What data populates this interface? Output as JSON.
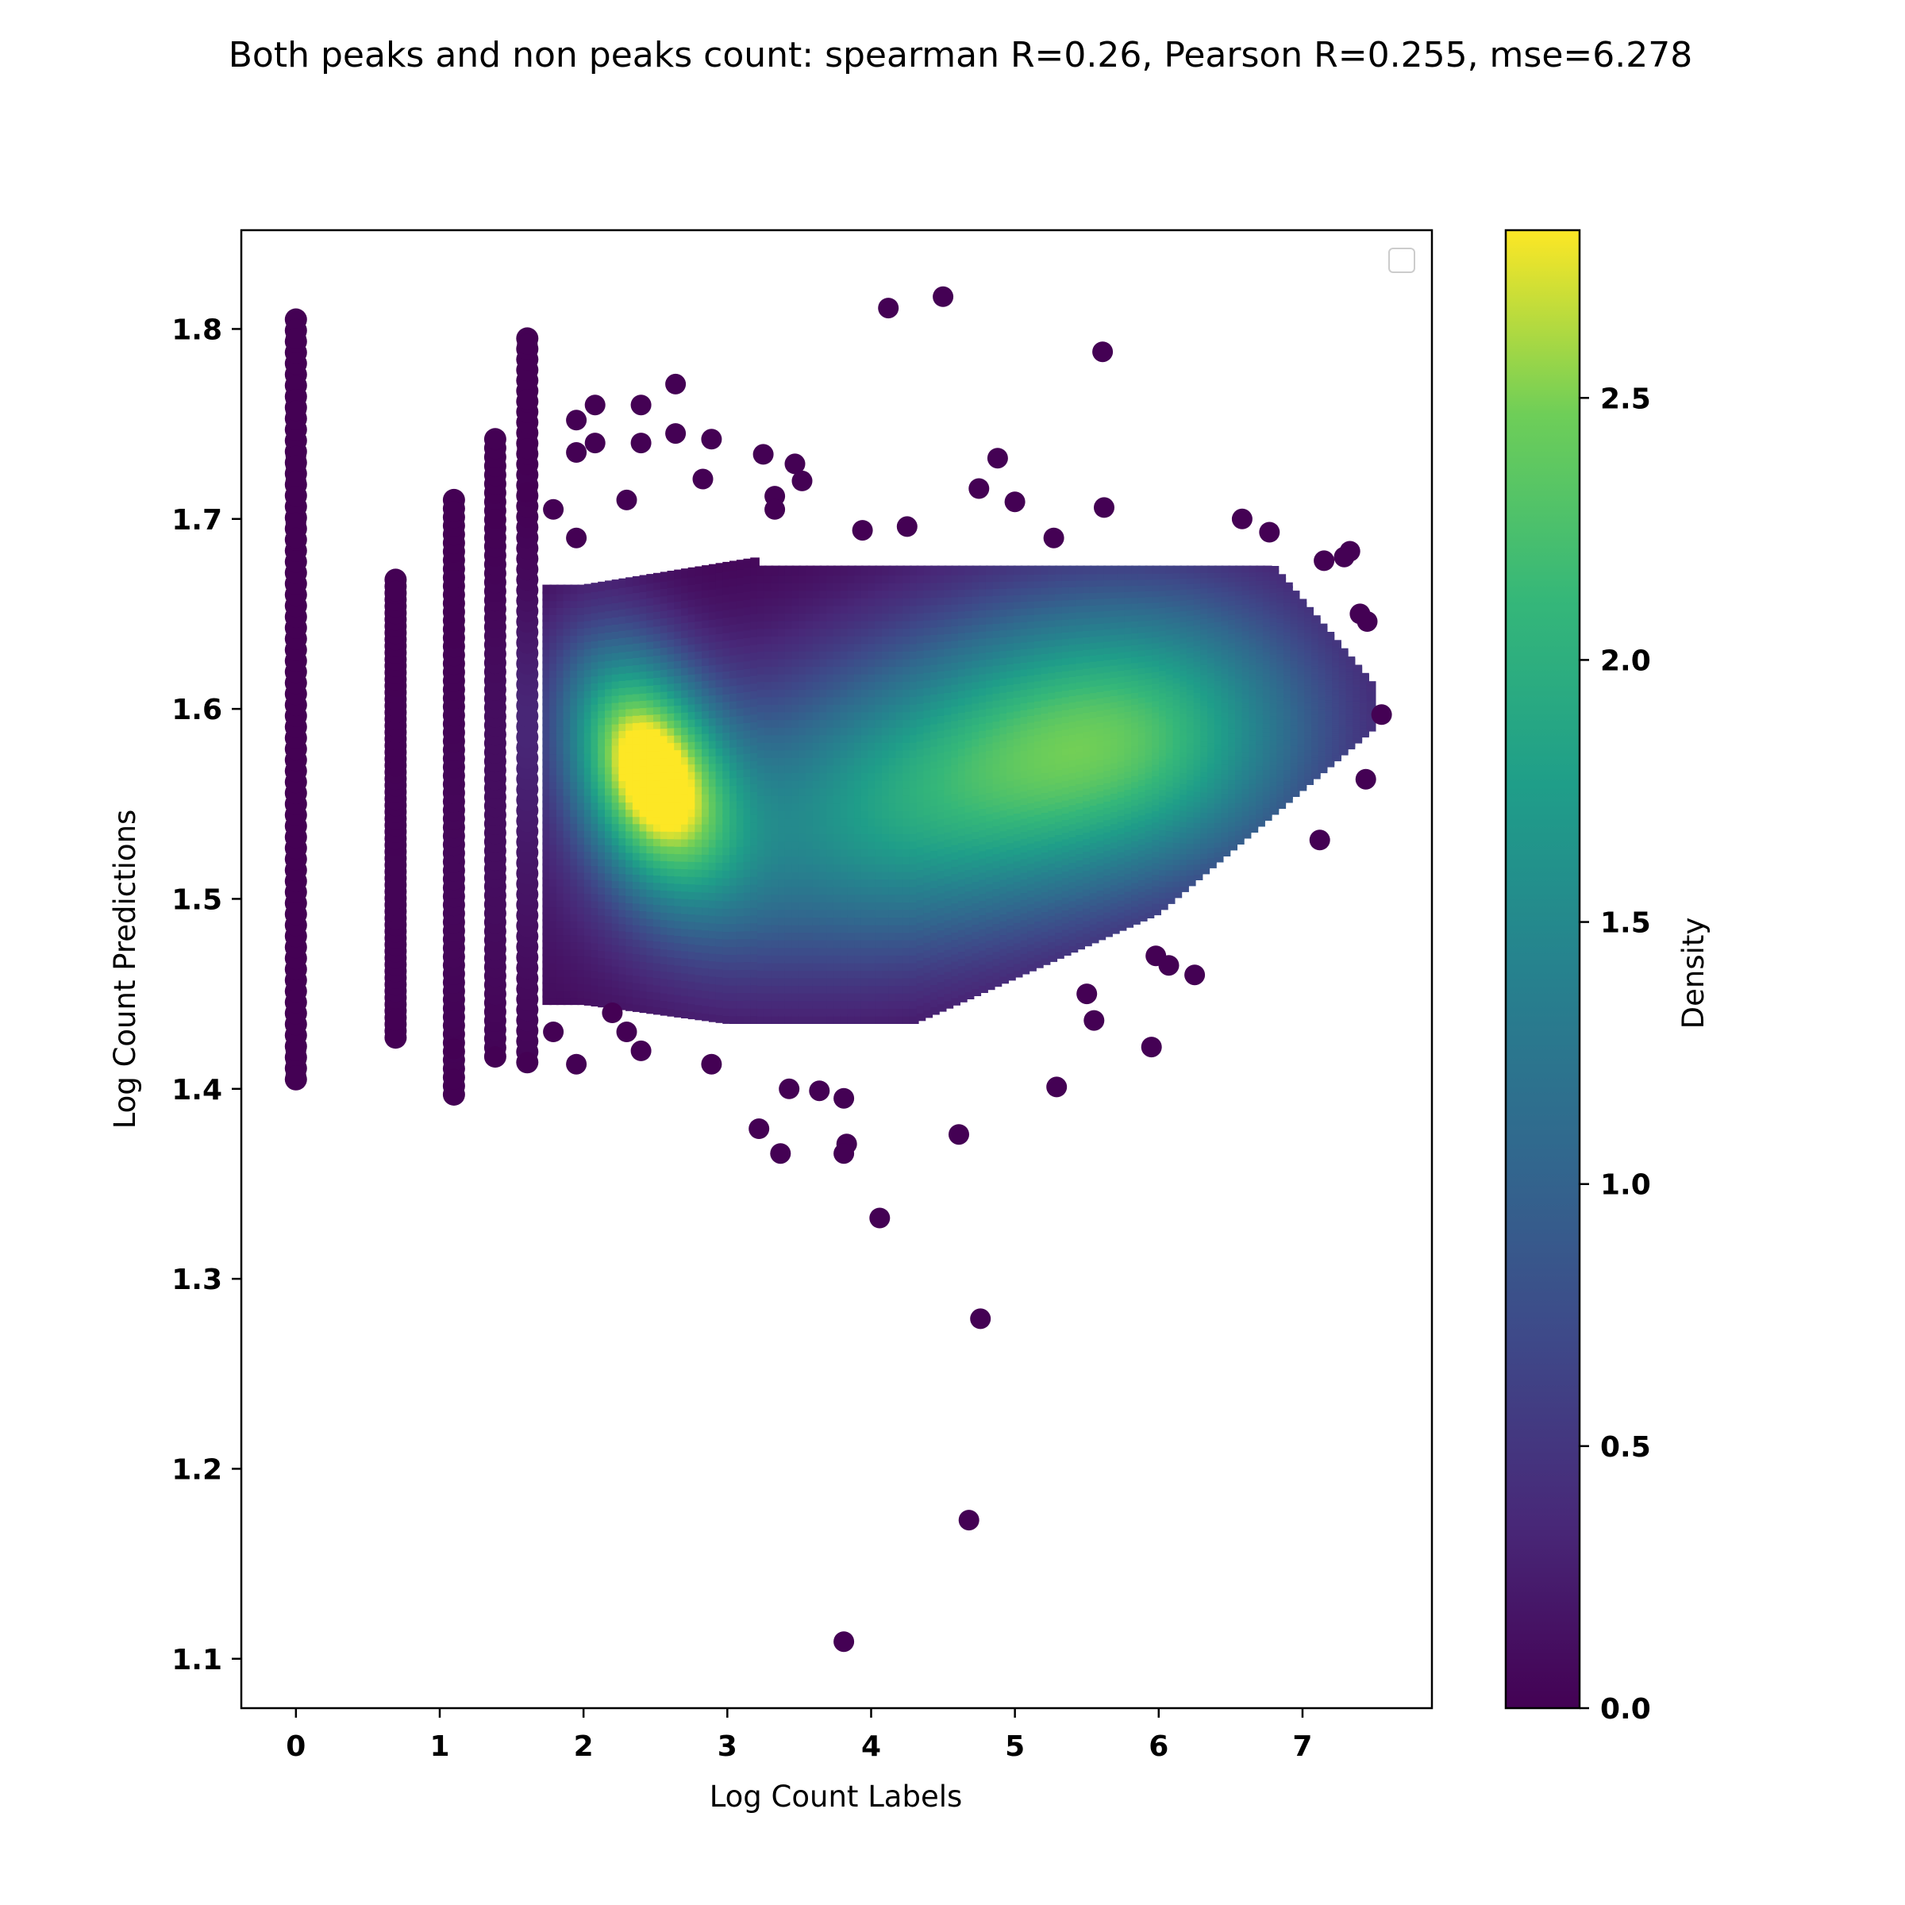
{
  "chart_data": {
    "type": "scatter",
    "title": "Both peaks and non peaks count: spearman R=0.26, Pearson R=0.255, mse=6.278",
    "xlabel": "Log Count Labels",
    "ylabel": "Log Count Predictions",
    "xlim": [
      -0.38,
      7.9
    ],
    "ylim": [
      1.074,
      1.852
    ],
    "x_ticks": [
      "0",
      "1",
      "2",
      "3",
      "4",
      "5",
      "6",
      "7"
    ],
    "y_ticks": [
      "1.1",
      "1.2",
      "1.3",
      "1.4",
      "1.5",
      "1.6",
      "1.7",
      "1.8"
    ],
    "grid": false,
    "legend": {
      "placement": "upper right",
      "entries": []
    },
    "colorbar": {
      "label": "Density",
      "range": [
        0,
        2.82
      ],
      "ticks": [
        "0.0",
        "0.5",
        "1.0",
        "1.5",
        "2.0",
        "2.5"
      ],
      "colormap": "viridis"
    },
    "density_modes": [
      {
        "x": 2.45,
        "y": 1.57,
        "density": 2.82
      },
      {
        "x": 4.3,
        "y": 1.55,
        "density": 1.7
      },
      {
        "x": 5.9,
        "y": 1.59,
        "density": 1.6
      }
    ],
    "discrete_x_columns": [
      {
        "x": 0.0,
        "y_min": 1.405,
        "y_max": 1.805
      },
      {
        "x": 0.693,
        "y_min": 1.427,
        "y_max": 1.668
      },
      {
        "x": 1.099,
        "y_min": 1.397,
        "y_max": 1.71
      },
      {
        "x": 1.386,
        "y_min": 1.417,
        "y_max": 1.742
      },
      {
        "x": 1.609,
        "y_min": 1.414,
        "y_max": 1.795
      }
    ],
    "series": [
      {
        "points": [
          [
            0.0,
            1.805
          ],
          [
            0.0,
            1.8
          ],
          [
            0.0,
            1.795
          ],
          [
            0.0,
            1.77
          ],
          [
            0.0,
            1.763
          ],
          [
            0.0,
            1.757
          ],
          [
            0.0,
            1.733
          ],
          [
            0.0,
            1.728
          ],
          [
            0.0,
            1.72
          ],
          [
            0.0,
            1.712
          ],
          [
            0.0,
            1.698
          ],
          [
            0.0,
            1.69
          ],
          [
            0.0,
            1.415
          ],
          [
            0.0,
            1.407
          ],
          [
            0.0,
            1.42
          ],
          [
            0.693,
            1.668
          ],
          [
            0.693,
            1.662
          ],
          [
            0.693,
            1.428
          ],
          [
            0.693,
            1.436
          ],
          [
            1.099,
            1.71
          ],
          [
            1.099,
            1.704
          ],
          [
            1.099,
            1.397
          ],
          [
            1.099,
            1.405
          ],
          [
            1.099,
            1.421
          ],
          [
            1.386,
            1.742
          ],
          [
            1.386,
            1.7
          ],
          [
            1.386,
            1.417
          ],
          [
            1.609,
            1.795
          ],
          [
            1.609,
            1.792
          ],
          [
            1.609,
            1.763
          ],
          [
            1.609,
            1.737
          ],
          [
            1.609,
            1.714
          ],
          [
            1.609,
            1.414
          ],
          [
            1.79,
            1.705
          ],
          [
            1.79,
            1.43
          ],
          [
            1.95,
            1.752
          ],
          [
            1.95,
            1.735
          ],
          [
            1.95,
            1.413
          ],
          [
            1.95,
            1.69
          ],
          [
            2.08,
            1.76
          ],
          [
            2.08,
            1.74
          ],
          [
            2.2,
            1.44
          ],
          [
            2.3,
            1.71
          ],
          [
            2.3,
            1.43
          ],
          [
            2.4,
            1.76
          ],
          [
            2.4,
            1.74
          ],
          [
            2.4,
            1.42
          ],
          [
            2.64,
            1.771
          ],
          [
            2.64,
            1.745
          ],
          [
            2.83,
            1.721
          ],
          [
            2.89,
            1.742
          ],
          [
            2.89,
            1.413
          ],
          [
            3.25,
            1.734
          ],
          [
            3.33,
            1.712
          ],
          [
            3.33,
            1.705
          ],
          [
            3.47,
            1.729
          ],
          [
            3.52,
            1.72
          ],
          [
            3.22,
            1.379
          ],
          [
            3.37,
            1.366
          ],
          [
            3.43,
            1.4
          ],
          [
            3.64,
            1.399
          ],
          [
            3.81,
            1.395
          ],
          [
            3.83,
            1.371
          ],
          [
            3.81,
            1.366
          ],
          [
            4.06,
            1.332
          ],
          [
            4.61,
            1.376
          ],
          [
            4.76,
            1.279
          ],
          [
            4.68,
            1.173
          ],
          [
            3.81,
            1.109
          ],
          [
            4.12,
            1.811
          ],
          [
            4.5,
            1.817
          ],
          [
            5.61,
            1.788
          ],
          [
            4.88,
            1.732
          ],
          [
            4.75,
            1.716
          ],
          [
            5.0,
            1.709
          ],
          [
            5.62,
            1.706
          ],
          [
            5.29,
            1.401
          ],
          [
            5.55,
            1.436
          ],
          [
            5.95,
            1.422
          ],
          [
            4.25,
            1.696
          ],
          [
            3.94,
            1.694
          ],
          [
            5.27,
            1.69
          ],
          [
            6.58,
            1.7
          ],
          [
            6.77,
            1.693
          ],
          [
            7.33,
            1.683
          ],
          [
            7.29,
            1.68
          ],
          [
            7.15,
            1.678
          ],
          [
            7.45,
            1.646
          ],
          [
            7.4,
            1.65
          ],
          [
            7.55,
            1.597
          ],
          [
            7.44,
            1.563
          ],
          [
            7.12,
            1.531
          ],
          [
            6.25,
            1.46
          ],
          [
            6.07,
            1.465
          ],
          [
            5.98,
            1.47
          ],
          [
            5.5,
            1.45
          ]
        ]
      }
    ]
  }
}
